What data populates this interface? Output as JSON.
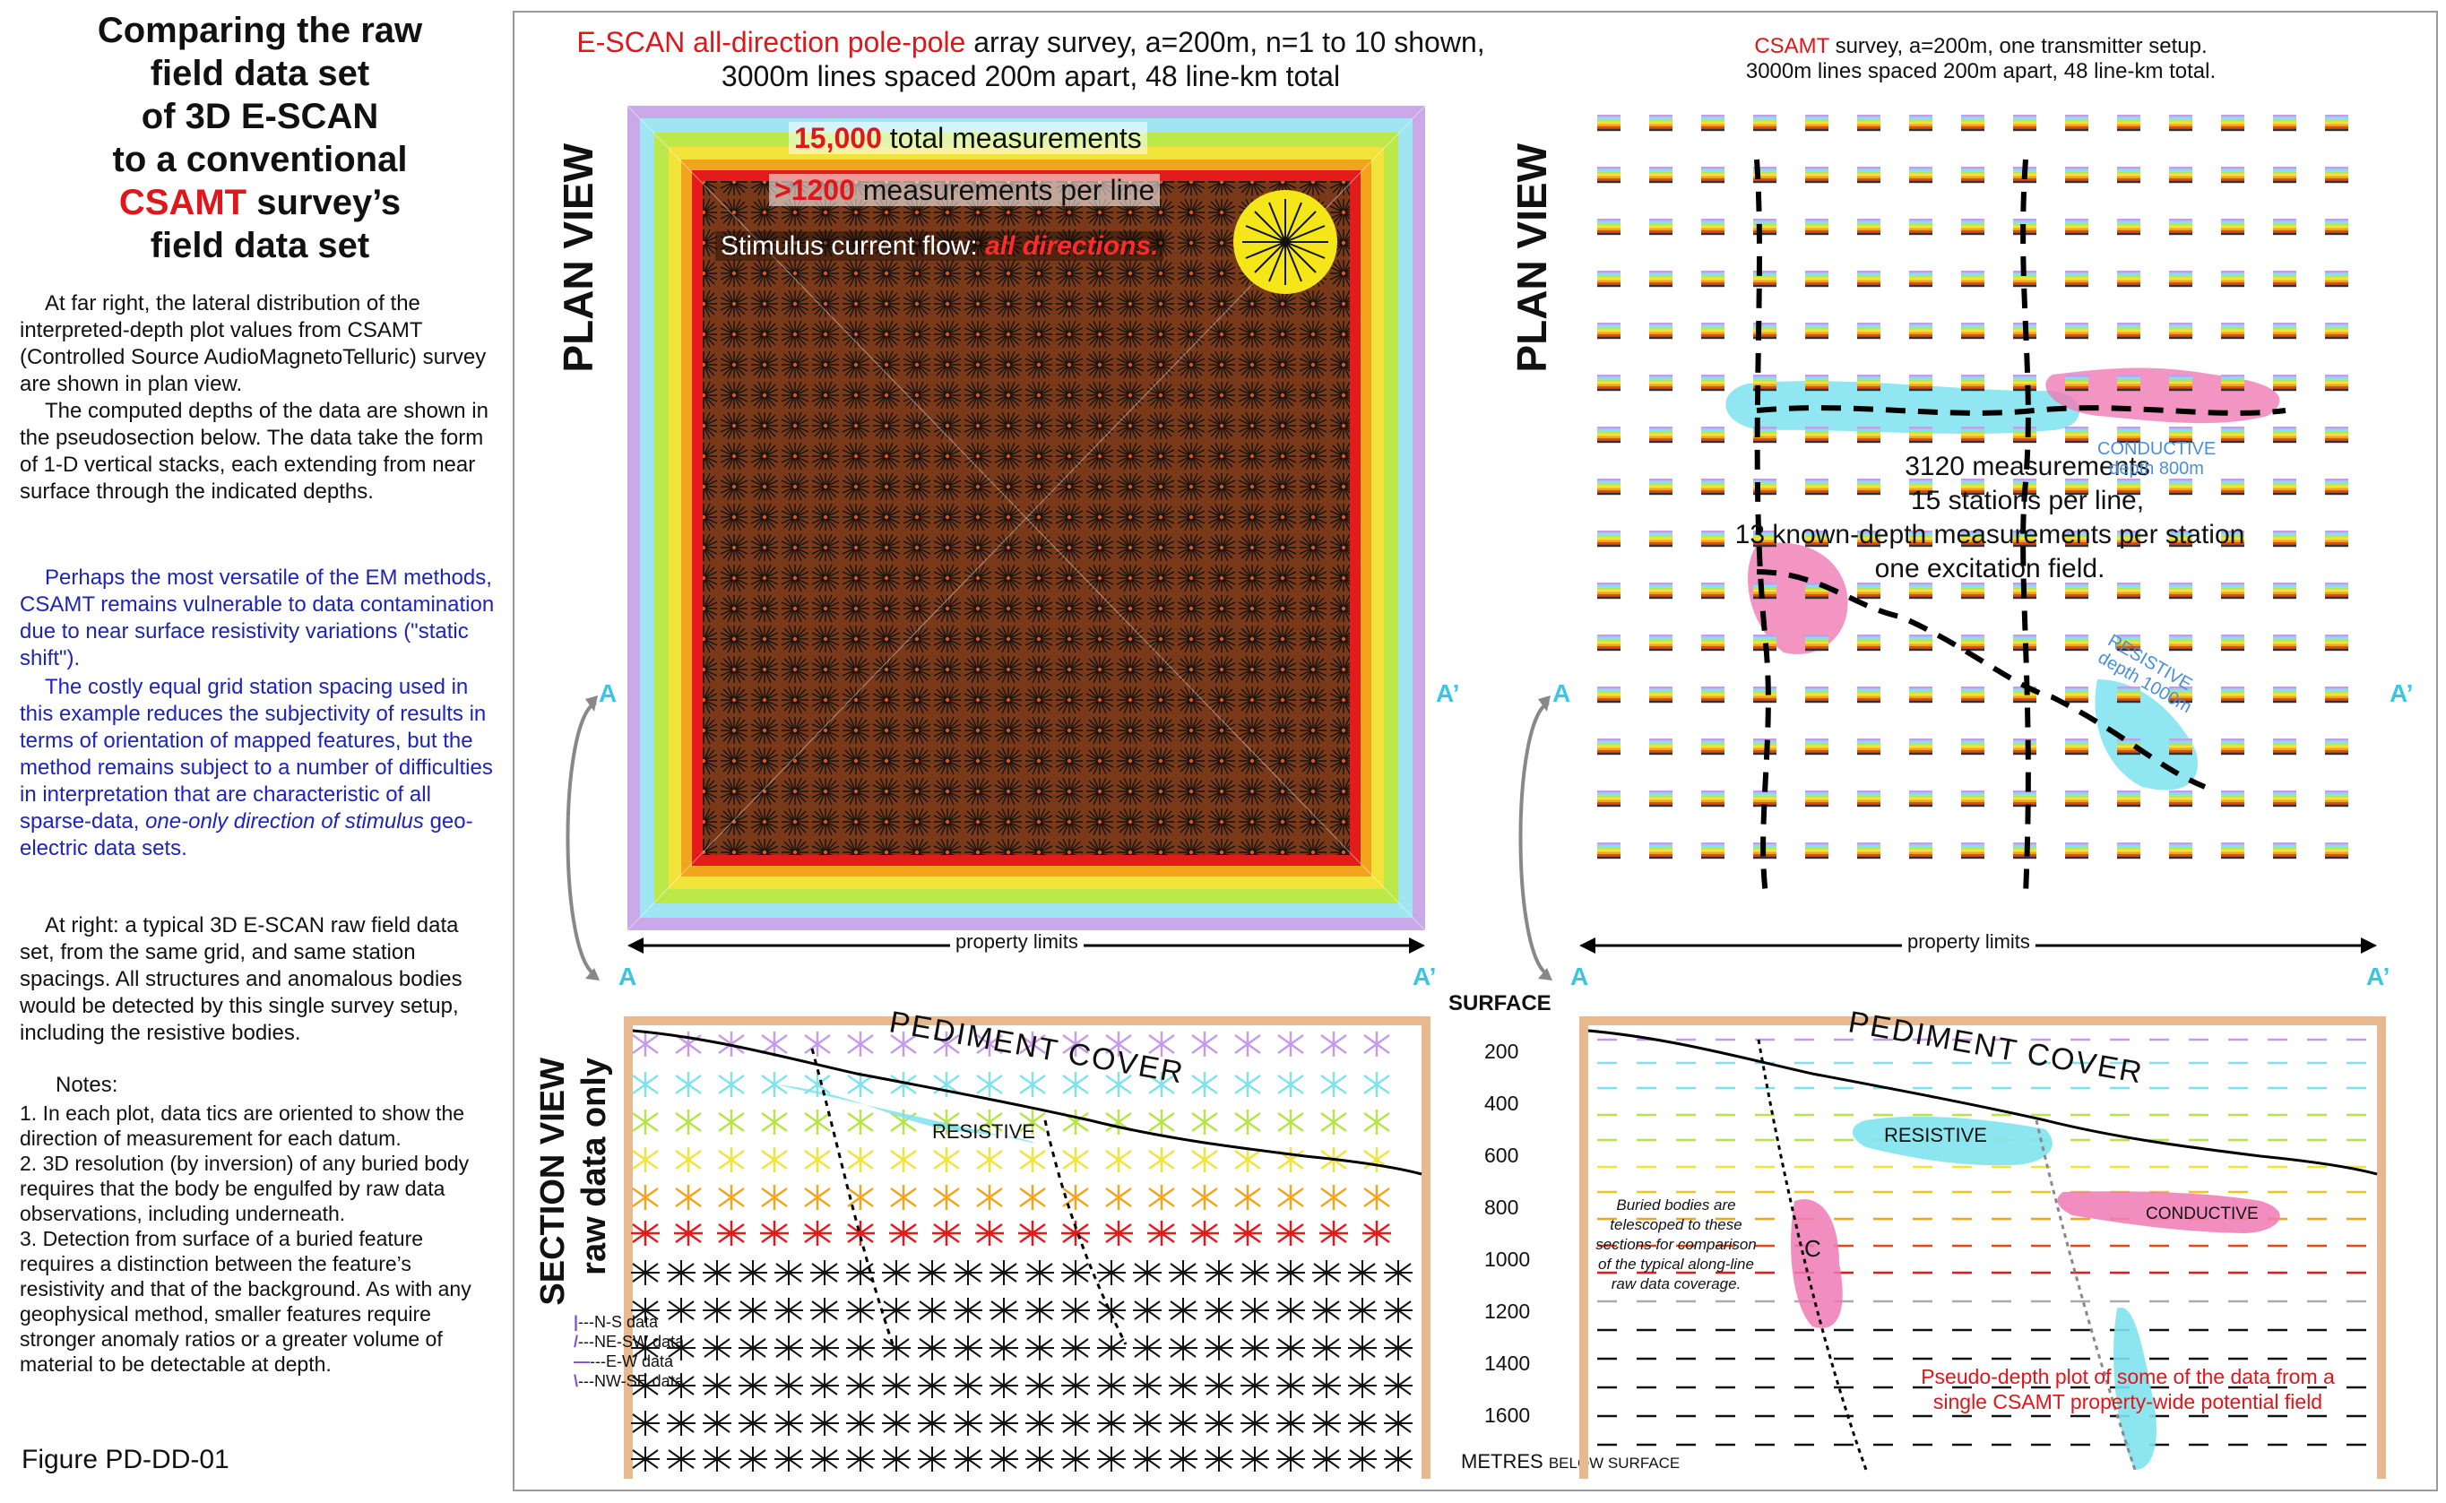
{
  "left": {
    "title_lines": [
      "Comparing the raw",
      "field data set",
      "of 3D E-SCAN",
      "to a conventional"
    ],
    "title_red": "CSAMT",
    "title_after_red": " survey’s",
    "title_last": "field data set",
    "p1": "At far right, the lateral distribution of the interpreted-depth plot values from CSAMT (Controlled Source AudioMagnetoTelluric) survey are shown in plan view.",
    "p2": "The computed depths of the data are shown in the pseudosection below. The data take the form of 1-D vertical stacks, each extending from near surface through the indicated depths.",
    "p3": "Perhaps the most versatile of the EM methods, CSAMT remains vulnerable to data contamination due to near surface resistivity variations (\"static shift\").",
    "p4a": "The costly equal grid station spacing used in this example reduces the subjectivity of results in terms of orientation of mapped features, but the method remains subject to a number of difficulties in interpretation that are characteristic of all sparse-data, ",
    "p4b": "one-only direction of stimulus",
    "p4c": " geo-electric data sets.",
    "p5": "At right: a typical 3D E-SCAN raw field data set, from the same grid, and same station spacings. All structures and anomalous bodies would be detected by this single survey setup, including the resistive bodies.",
    "notes_title": "Notes:",
    "n1": "1.   In each plot, data tics are oriented to show the direction of measurement for each datum.",
    "n2": "2.   3D resolution (by inversion) of any buried body requires that the body be engulfed by raw data observations, including underneath.",
    "n3": "3.   Detection from surface of a buried feature requires a distinction between the feature’s resistivity and that of the background.  As with any geophysical method, smaller features require stronger anomaly ratios or a greater volume of material to be detectable at depth.",
    "figure": "Figure PD-DD-01"
  },
  "escan": {
    "header_red": "E-SCAN all-direction pole-pole",
    "header_rest": " array survey, a=200m, n=1 to 10 shown,",
    "header_line2": "3000m lines spaced 200m apart, 48 line-km total",
    "plan_view": "PLAN VIEW",
    "meas_red": "15,000",
    "meas_rest": " total measurements",
    "perline_red": ">1200",
    "perline_rest": " measurements per line",
    "stimulus": "Stimulus current flow: ",
    "stimulus_red": "all directions.",
    "property_limits": "property limits",
    "section_view": "SECTION VIEW",
    "raw_only": "raw data only",
    "pediment": "PEDIMENT COVER",
    "resistive": "RESISTIVE",
    "legend": [
      "---N-S data",
      "---NE-SW data",
      "---E-W data",
      "---NW-SE data"
    ]
  },
  "csamt": {
    "header_red": "CSAMT",
    "header_rest": " survey, a=200m, one transmitter setup.",
    "header_line2": "3000m lines spaced 200m apart, 48 line-km total.",
    "plan_view": "PLAN VIEW",
    "m1": "3120  measurements",
    "m2": "15 stations per line,",
    "m3": "13 known-depth measurements per station",
    "m4": "one excitation field.",
    "resistive_label": "RESISTIVE",
    "conductive_label": "CONDUCTIVE",
    "conductive_depth": "depth 800m",
    "resistive_depth": "depth 1000m",
    "property_limits": "property limits",
    "pediment": "PEDIMENT COVER",
    "resistive": "RESISTIVE",
    "conductive": "CONDUCTIVE",
    "c_label": "C",
    "buried_note": "Buried bodies are telescoped to these sections for comparison of the typical along-line raw data coverage.",
    "pseudo_note1": "Pseudo-depth plot of some of the data from a",
    "pseudo_note2": "single CSAMT property-wide potential field"
  },
  "depth_axis": {
    "surface": "SURFACE",
    "ticks": [
      "200",
      "400",
      "600",
      "800",
      "1000",
      "1200",
      "1400",
      "1600"
    ],
    "unit": "METRES",
    "unit_small": "BELOW SURFACE"
  },
  "markers": {
    "a": "A",
    "a_prime": "A’"
  }
}
